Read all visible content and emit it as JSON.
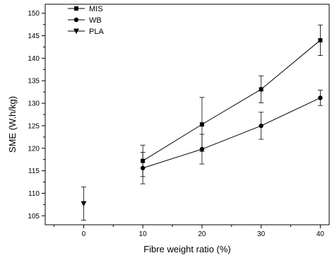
{
  "chart_data": {
    "type": "line",
    "xlabel": "Fibre weight ratio (%)",
    "ylabel": "SME (W.h/kg)",
    "xlim": [
      -6.5,
      41.5
    ],
    "ylim": [
      103,
      152
    ],
    "x_ticks": [
      0,
      10,
      20,
      30,
      40
    ],
    "y_ticks": [
      105,
      110,
      115,
      120,
      125,
      130,
      135,
      140,
      145,
      150
    ],
    "grid": false,
    "legend_position": "top-left",
    "series": [
      {
        "name": "MIS",
        "marker": "square",
        "x": [
          10,
          20,
          30,
          40
        ],
        "y": [
          117.2,
          125.3,
          133.1,
          144.0
        ],
        "err": [
          3.5,
          6.0,
          3.0,
          3.4
        ]
      },
      {
        "name": "WB",
        "marker": "circle",
        "x": [
          10,
          20,
          30,
          40
        ],
        "y": [
          115.6,
          119.8,
          125.0,
          131.2
        ],
        "err": [
          3.5,
          3.3,
          3.0,
          1.7
        ]
      },
      {
        "name": "PLA",
        "marker": "triangle-down",
        "x": [
          0
        ],
        "y": [
          107.7
        ],
        "err": [
          3.7
        ]
      }
    ]
  }
}
